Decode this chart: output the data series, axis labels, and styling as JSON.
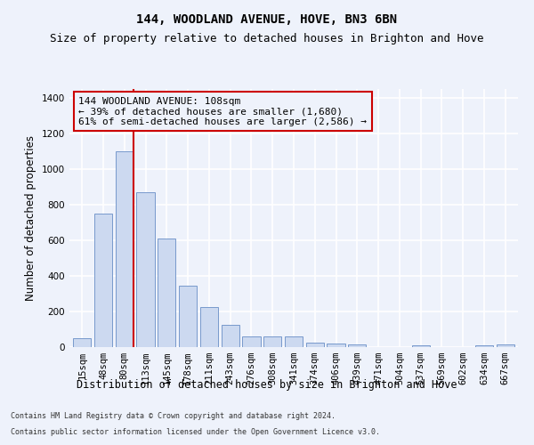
{
  "title": "144, WOODLAND AVENUE, HOVE, BN3 6BN",
  "subtitle": "Size of property relative to detached houses in Brighton and Hove",
  "xlabel": "Distribution of detached houses by size in Brighton and Hove",
  "ylabel": "Number of detached properties",
  "footnote1": "Contains HM Land Registry data © Crown copyright and database right 2024.",
  "footnote2": "Contains public sector information licensed under the Open Government Licence v3.0.",
  "categories": [
    "15sqm",
    "48sqm",
    "80sqm",
    "113sqm",
    "145sqm",
    "178sqm",
    "211sqm",
    "243sqm",
    "276sqm",
    "308sqm",
    "341sqm",
    "374sqm",
    "406sqm",
    "439sqm",
    "471sqm",
    "504sqm",
    "537sqm",
    "569sqm",
    "602sqm",
    "634sqm",
    "667sqm"
  ],
  "values": [
    50,
    750,
    1100,
    870,
    610,
    345,
    225,
    125,
    58,
    62,
    60,
    25,
    20,
    15,
    0,
    0,
    10,
    0,
    0,
    10,
    15
  ],
  "bar_color": "#ccd9f0",
  "bar_edge_color": "#7799cc",
  "vline_color": "#cc0000",
  "annotation_text": "144 WOODLAND AVENUE: 108sqm\n← 39% of detached houses are smaller (1,680)\n61% of semi-detached houses are larger (2,586) →",
  "annotation_box_color": "#cc0000",
  "ylim": [
    0,
    1450
  ],
  "yticks": [
    0,
    200,
    400,
    600,
    800,
    1000,
    1200,
    1400
  ],
  "bg_color": "#eef2fb",
  "grid_color": "#ffffff",
  "title_fontsize": 10,
  "subtitle_fontsize": 9,
  "axis_label_fontsize": 8.5,
  "tick_fontsize": 7.5,
  "annotation_fontsize": 8,
  "footnote_fontsize": 6
}
